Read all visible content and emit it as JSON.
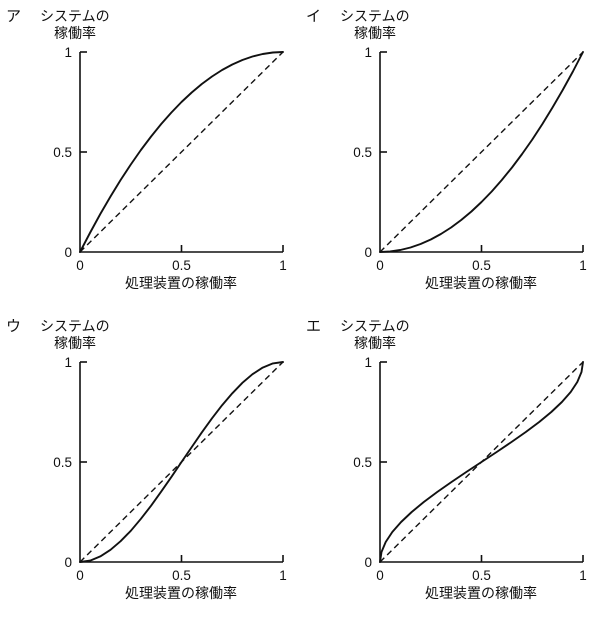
{
  "page": {
    "background": "#ffffff",
    "ink": "#111111"
  },
  "chart_data": [
    {
      "type": "line",
      "option": "ア",
      "ylabel_lines": [
        "システムの",
        "稼働率"
      ],
      "xlabel": "処理装置の稼働率",
      "xlim": [
        0,
        1
      ],
      "ylim": [
        0,
        1
      ],
      "grid": false,
      "legend": false,
      "xticks": [
        {
          "v": 0,
          "label": "0"
        },
        {
          "v": 0.5,
          "label": "0.5"
        },
        {
          "v": 1,
          "label": "1"
        }
      ],
      "yticks": [
        {
          "v": 1,
          "label": "1"
        },
        {
          "v": 0.5,
          "label": "0.5"
        },
        {
          "v": 0,
          "label": "0"
        }
      ],
      "series": [
        {
          "name": "system-availability-curve",
          "style": "solid",
          "shape": "concave, above diagonal (parallel system 1-(1-x)^2)",
          "points": [
            [
              0,
              0
            ],
            [
              0.05,
              0.0975
            ],
            [
              0.1,
              0.19
            ],
            [
              0.15,
              0.2775
            ],
            [
              0.2,
              0.36
            ],
            [
              0.25,
              0.4375
            ],
            [
              0.3,
              0.51
            ],
            [
              0.35,
              0.5775
            ],
            [
              0.4,
              0.64
            ],
            [
              0.45,
              0.6975
            ],
            [
              0.5,
              0.75
            ],
            [
              0.55,
              0.7975
            ],
            [
              0.6,
              0.84
            ],
            [
              0.65,
              0.8775
            ],
            [
              0.7,
              0.91
            ],
            [
              0.75,
              0.9375
            ],
            [
              0.8,
              0.96
            ],
            [
              0.85,
              0.9775
            ],
            [
              0.9,
              0.99
            ],
            [
              0.95,
              0.9975
            ],
            [
              1,
              1
            ]
          ]
        },
        {
          "name": "diagonal-reference",
          "style": "dashed",
          "shape": "y = x",
          "points": [
            [
              0,
              0
            ],
            [
              1,
              1
            ]
          ]
        }
      ]
    },
    {
      "type": "line",
      "option": "イ",
      "ylabel_lines": [
        "システムの",
        "稼働率"
      ],
      "xlabel": "処理装置の稼働率",
      "xlim": [
        0,
        1
      ],
      "ylim": [
        0,
        1
      ],
      "grid": false,
      "legend": false,
      "xticks": [
        {
          "v": 0,
          "label": "0"
        },
        {
          "v": 0.5,
          "label": "0.5"
        },
        {
          "v": 1,
          "label": "1"
        }
      ],
      "yticks": [
        {
          "v": 1,
          "label": "1"
        },
        {
          "v": 0.5,
          "label": "0.5"
        },
        {
          "v": 0,
          "label": "0"
        }
      ],
      "series": [
        {
          "name": "system-availability-curve",
          "style": "solid",
          "shape": "convex, below diagonal (series system x^2)",
          "points": [
            [
              0,
              0
            ],
            [
              0.05,
              0.0025
            ],
            [
              0.1,
              0.01
            ],
            [
              0.15,
              0.0225
            ],
            [
              0.2,
              0.04
            ],
            [
              0.25,
              0.0625
            ],
            [
              0.3,
              0.09
            ],
            [
              0.35,
              0.1225
            ],
            [
              0.4,
              0.16
            ],
            [
              0.45,
              0.2025
            ],
            [
              0.5,
              0.25
            ],
            [
              0.55,
              0.3025
            ],
            [
              0.6,
              0.36
            ],
            [
              0.65,
              0.4225
            ],
            [
              0.7,
              0.49
            ],
            [
              0.75,
              0.5625
            ],
            [
              0.8,
              0.64
            ],
            [
              0.85,
              0.7225
            ],
            [
              0.9,
              0.81
            ],
            [
              0.95,
              0.9025
            ],
            [
              1,
              1
            ]
          ]
        },
        {
          "name": "diagonal-reference",
          "style": "dashed",
          "shape": "y = x",
          "points": [
            [
              0,
              0
            ],
            [
              1,
              1
            ]
          ]
        }
      ]
    },
    {
      "type": "line",
      "option": "ウ",
      "ylabel_lines": [
        "システムの",
        "稼働率"
      ],
      "xlabel": "処理装置の稼働率",
      "xlim": [
        0,
        1
      ],
      "ylim": [
        0,
        1
      ],
      "grid": false,
      "legend": false,
      "xticks": [
        {
          "v": 0,
          "label": "0"
        },
        {
          "v": 0.5,
          "label": "0.5"
        },
        {
          "v": 1,
          "label": "1"
        }
      ],
      "yticks": [
        {
          "v": 1,
          "label": "1"
        },
        {
          "v": 0.5,
          "label": "0.5"
        },
        {
          "v": 0,
          "label": "0"
        }
      ],
      "series": [
        {
          "name": "system-availability-curve",
          "style": "solid",
          "shape": "S-curve, below diagonal for x<0.5, crosses at (0.5,0.5), above for x>0.5 (3x^2-2x^3)",
          "points": [
            [
              0,
              0
            ],
            [
              0.05,
              0.00725
            ],
            [
              0.1,
              0.028
            ],
            [
              0.15,
              0.06075
            ],
            [
              0.2,
              0.104
            ],
            [
              0.25,
              0.15625
            ],
            [
              0.3,
              0.216
            ],
            [
              0.35,
              0.28175
            ],
            [
              0.4,
              0.352
            ],
            [
              0.45,
              0.42525
            ],
            [
              0.5,
              0.5
            ],
            [
              0.55,
              0.57475
            ],
            [
              0.6,
              0.648
            ],
            [
              0.65,
              0.71825
            ],
            [
              0.7,
              0.784
            ],
            [
              0.75,
              0.84375
            ],
            [
              0.8,
              0.896
            ],
            [
              0.85,
              0.93925
            ],
            [
              0.9,
              0.972
            ],
            [
              0.95,
              0.99275
            ],
            [
              1,
              1
            ]
          ]
        },
        {
          "name": "diagonal-reference",
          "style": "dashed",
          "shape": "y = x",
          "points": [
            [
              0,
              0
            ],
            [
              1,
              1
            ]
          ]
        }
      ]
    },
    {
      "type": "line",
      "option": "エ",
      "ylabel_lines": [
        "システムの",
        "稼働率"
      ],
      "xlabel": "処理装置の稼働率",
      "xlim": [
        0,
        1
      ],
      "ylim": [
        0,
        1
      ],
      "grid": false,
      "legend": false,
      "xticks": [
        {
          "v": 0,
          "label": "0"
        },
        {
          "v": 0.5,
          "label": "0.5"
        },
        {
          "v": 1,
          "label": "1"
        }
      ],
      "yticks": [
        {
          "v": 1,
          "label": "1"
        },
        {
          "v": 0.5,
          "label": "0.5"
        },
        {
          "v": 0,
          "label": "0"
        }
      ],
      "series": [
        {
          "name": "system-availability-curve",
          "style": "solid",
          "shape": "inverse S-curve, above diagonal for x<0.5, crosses at (0.5,0.5), below for x>0.5",
          "points": [
            [
              0,
              0
            ],
            [
              0.00725,
              0.05
            ],
            [
              0.028,
              0.1
            ],
            [
              0.06075,
              0.15
            ],
            [
              0.104,
              0.2
            ],
            [
              0.15625,
              0.25
            ],
            [
              0.216,
              0.3
            ],
            [
              0.28175,
              0.35
            ],
            [
              0.352,
              0.4
            ],
            [
              0.42525,
              0.45
            ],
            [
              0.5,
              0.5
            ],
            [
              0.57475,
              0.55
            ],
            [
              0.648,
              0.6
            ],
            [
              0.71825,
              0.65
            ],
            [
              0.784,
              0.7
            ],
            [
              0.84375,
              0.75
            ],
            [
              0.896,
              0.8
            ],
            [
              0.93925,
              0.85
            ],
            [
              0.972,
              0.9
            ],
            [
              0.99275,
              0.95
            ],
            [
              1,
              1
            ]
          ]
        },
        {
          "name": "diagonal-reference",
          "style": "dashed",
          "shape": "y = x",
          "points": [
            [
              0,
              0
            ],
            [
              1,
              1
            ]
          ]
        }
      ]
    }
  ]
}
